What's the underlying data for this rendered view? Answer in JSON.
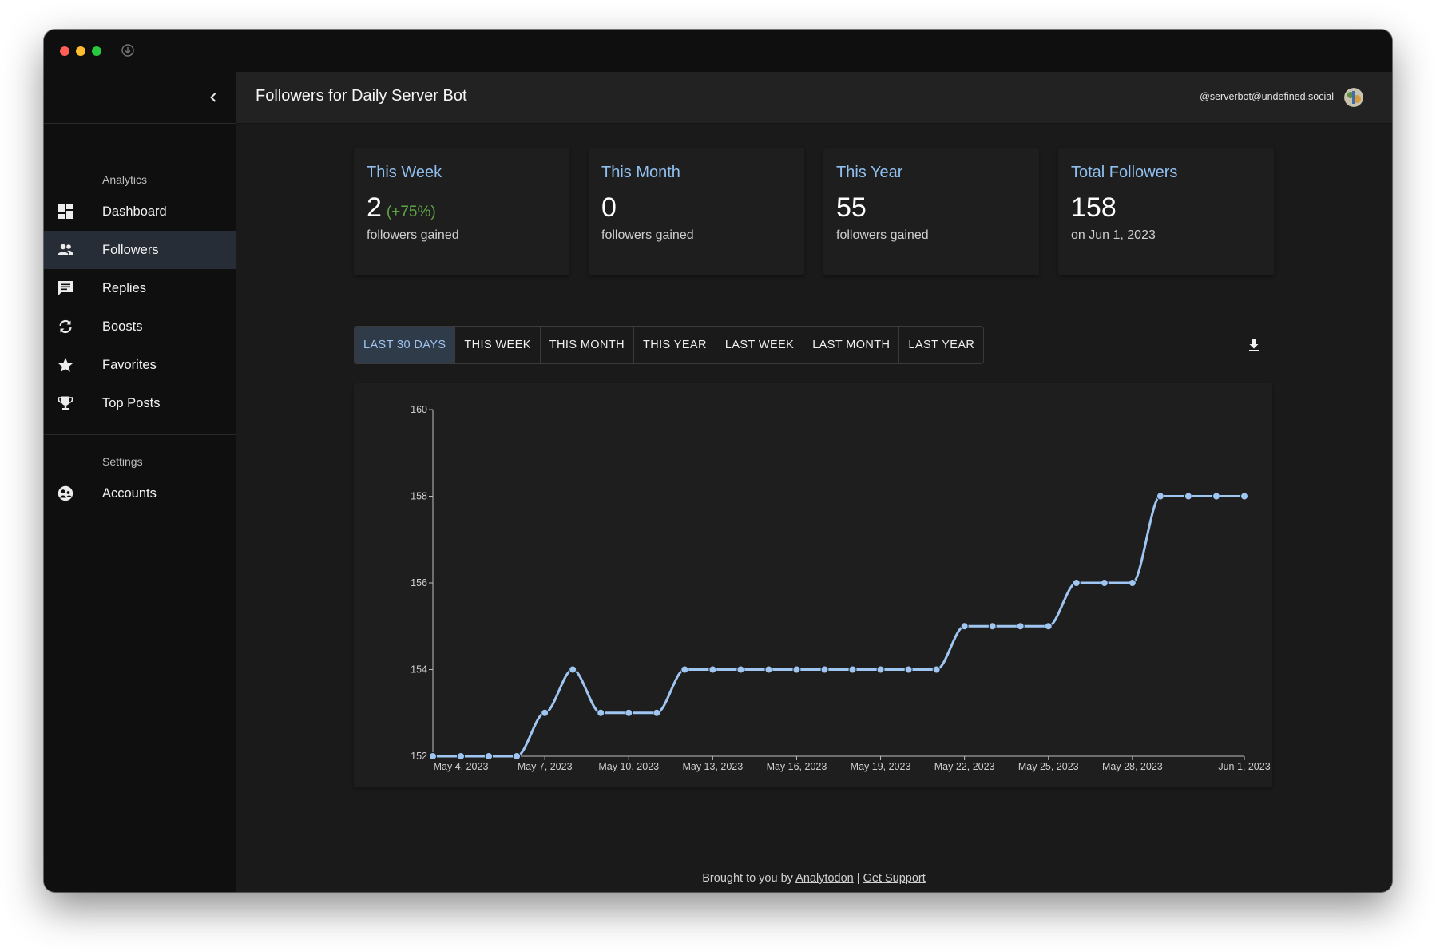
{
  "window": {
    "title": "Followers for Daily Server Bot"
  },
  "account": {
    "handle": "@serverbot@undefined.social"
  },
  "sidebar": {
    "analytics_label": "Analytics",
    "settings_label": "Settings",
    "items": [
      {
        "label": "Dashboard",
        "icon": "dashboard-icon"
      },
      {
        "label": "Followers",
        "icon": "people-icon"
      },
      {
        "label": "Replies",
        "icon": "comment-icon"
      },
      {
        "label": "Boosts",
        "icon": "boost-icon"
      },
      {
        "label": "Favorites",
        "icon": "star-icon"
      },
      {
        "label": "Top Posts",
        "icon": "trophy-icon"
      }
    ],
    "settings_items": [
      {
        "label": "Accounts",
        "icon": "accounts-icon"
      }
    ]
  },
  "cards": [
    {
      "title": "This Week",
      "value": "2",
      "change": "(+75%)",
      "sub": "followers gained"
    },
    {
      "title": "This Month",
      "value": "0",
      "sub": "followers gained"
    },
    {
      "title": "This Year",
      "value": "55",
      "sub": "followers gained"
    },
    {
      "title": "Total Followers",
      "value": "158",
      "sub": "on Jun 1, 2023"
    }
  ],
  "tabs": [
    "LAST 30 DAYS",
    "THIS WEEK",
    "THIS MONTH",
    "THIS YEAR",
    "LAST WEEK",
    "LAST MONTH",
    "LAST YEAR"
  ],
  "active_tab": "LAST 30 DAYS",
  "footer": {
    "prefix": "Brought to you by",
    "link1": "Analytodon",
    "separator": "|",
    "link2": "Get Support"
  },
  "colors": {
    "accent": "#90bff0",
    "line": "#9fc6f2",
    "positive": "#5ea545",
    "active_bg": "#262d36"
  },
  "chart_data": {
    "type": "line",
    "title": "",
    "xlabel": "",
    "ylabel": "",
    "ylim": [
      152,
      160
    ],
    "yticks": [
      152,
      154,
      156,
      158,
      160
    ],
    "x": [
      "May 3, 2023",
      "May 4, 2023",
      "May 5, 2023",
      "May 6, 2023",
      "May 7, 2023",
      "May 8, 2023",
      "May 9, 2023",
      "May 10, 2023",
      "May 11, 2023",
      "May 12, 2023",
      "May 13, 2023",
      "May 14, 2023",
      "May 15, 2023",
      "May 16, 2023",
      "May 17, 2023",
      "May 18, 2023",
      "May 19, 2023",
      "May 20, 2023",
      "May 21, 2023",
      "May 22, 2023",
      "May 23, 2023",
      "May 24, 2023",
      "May 25, 2023",
      "May 26, 2023",
      "May 27, 2023",
      "May 28, 2023",
      "May 29, 2023",
      "May 30, 2023",
      "May 31, 2023",
      "Jun 1, 2023"
    ],
    "xtick_labels": [
      {
        "index": 1,
        "label": "May 4, 2023"
      },
      {
        "index": 4,
        "label": "May 7, 2023"
      },
      {
        "index": 7,
        "label": "May 10, 2023"
      },
      {
        "index": 10,
        "label": "May 13, 2023"
      },
      {
        "index": 13,
        "label": "May 16, 2023"
      },
      {
        "index": 16,
        "label": "May 19, 2023"
      },
      {
        "index": 19,
        "label": "May 22, 2023"
      },
      {
        "index": 22,
        "label": "May 25, 2023"
      },
      {
        "index": 25,
        "label": "May 28, 2023"
      },
      {
        "index": 29,
        "label": "Jun 1, 2023"
      }
    ],
    "series": [
      {
        "name": "Followers",
        "values": [
          152,
          152,
          152,
          152,
          153,
          154,
          153,
          153,
          153,
          154,
          154,
          154,
          154,
          154,
          154,
          154,
          154,
          154,
          154,
          155,
          155,
          155,
          155,
          156,
          156,
          156,
          158,
          158,
          158,
          158
        ]
      }
    ]
  }
}
